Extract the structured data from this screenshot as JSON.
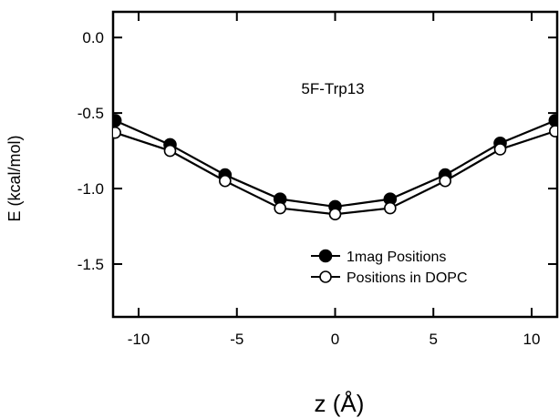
{
  "chart_data": {
    "type": "line",
    "annotation": "5F-Trp13",
    "xlabel": "z (Å)",
    "ylabel": "E (kcal/mol)",
    "xlim": [
      -11.3,
      11.3
    ],
    "ylim": [
      -1.85,
      0.17
    ],
    "x_ticks": [
      -10,
      -5,
      0,
      5,
      10
    ],
    "x_tick_labels": [
      "-10",
      "-5",
      "0",
      "5",
      "10"
    ],
    "y_ticks": [
      0.0,
      -0.5,
      -1.0,
      -1.5
    ],
    "y_tick_labels": [
      "0.0",
      "-0.5",
      "-1.0",
      "-1.5"
    ],
    "legend_position": "bottom-right",
    "series": [
      {
        "name": "1mag Positions",
        "marker": "filled-circle",
        "x": [
          -11.2,
          -8.4,
          -5.6,
          -2.8,
          0,
          2.8,
          5.6,
          8.4,
          11.2
        ],
        "y": [
          -0.55,
          -0.71,
          -0.91,
          -1.07,
          -1.12,
          -1.07,
          -0.91,
          -0.7,
          -0.55
        ]
      },
      {
        "name": "Positions in DOPC",
        "marker": "open-circle",
        "x": [
          -11.2,
          -8.4,
          -5.6,
          -2.8,
          0,
          2.8,
          5.6,
          8.4,
          11.2
        ],
        "y": [
          -0.63,
          -0.75,
          -0.95,
          -1.13,
          -1.17,
          -1.13,
          -0.95,
          -0.74,
          -0.62
        ]
      }
    ]
  }
}
